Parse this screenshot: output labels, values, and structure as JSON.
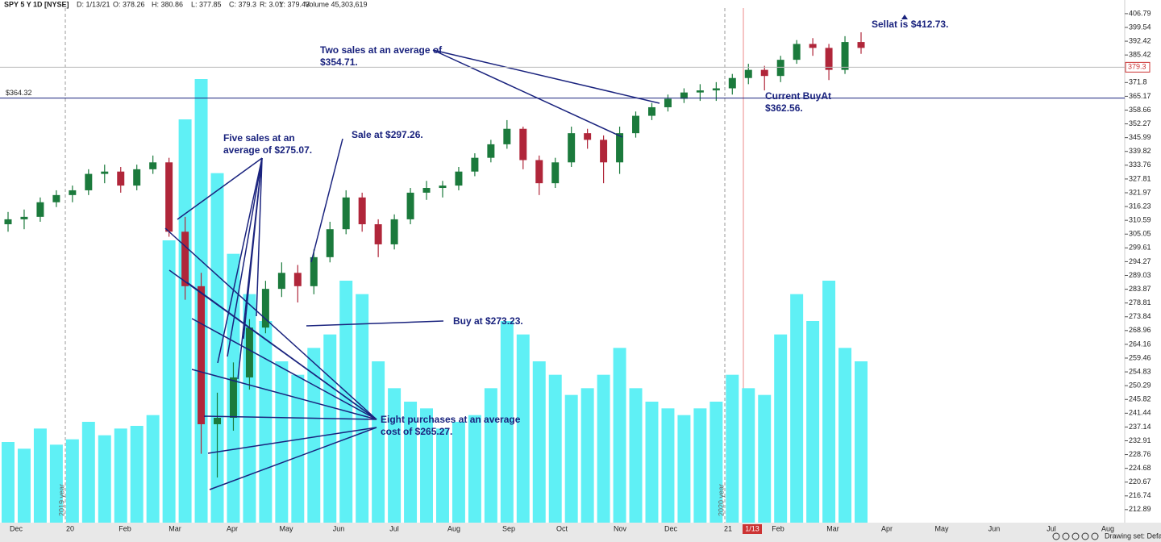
{
  "chart_data": {
    "type": "candlestick",
    "header": {
      "symbol": "SPY 5 Y 1D [NYSE]",
      "date": "D: 1/13/21",
      "open": "O: 378.26",
      "high": "H: 380.86",
      "low": "L: 377.85",
      "close": "C: 379.3",
      "range": "R: 3.01",
      "yesterday": "Y: 379.43",
      "volume": "Volume 45,303,619"
    },
    "log_scale": true,
    "ylim": [
      209.3,
      414.1
    ],
    "yticks": [
      406.79,
      399.54,
      392.42,
      385.42,
      371.8,
      365.17,
      358.66,
      352.27,
      345.99,
      339.82,
      333.76,
      327.81,
      321.97,
      316.23,
      310.59,
      305.05,
      299.61,
      294.27,
      289.03,
      283.87,
      278.81,
      273.84,
      268.96,
      264.16,
      259.46,
      254.83,
      250.29,
      245.82,
      241.44,
      237.14,
      232.91,
      228.76,
      224.68,
      220.67,
      216.74,
      212.89
    ],
    "last_price": 379.3,
    "price_line": {
      "value": 364.32,
      "label": "$364.32"
    },
    "categories": [
      "Dec",
      "20",
      "Feb",
      "Mar",
      "Apr",
      "May",
      "Jun",
      "Jul",
      "Aug",
      "Sep",
      "Oct",
      "Nov",
      "Dec",
      "21",
      "1/13",
      "Feb",
      "Mar",
      "Apr",
      "May",
      "Jun",
      "Jul",
      "Aug"
    ],
    "year_labels": [
      "2019 year",
      "2020 year"
    ],
    "up_color": "#1b7a3c",
    "down_color": "#b0263a",
    "volume_color": "#5ff0f5",
    "candles": [
      {
        "open": 309,
        "high": 314,
        "low": 306,
        "close": 311
      },
      {
        "open": 311,
        "high": 315,
        "low": 307,
        "close": 312
      },
      {
        "open": 312,
        "high": 320,
        "low": 310,
        "close": 318
      },
      {
        "open": 318,
        "high": 323,
        "low": 316,
        "close": 321
      },
      {
        "open": 321,
        "high": 325,
        "low": 318,
        "close": 323
      },
      {
        "open": 323,
        "high": 332,
        "low": 321,
        "close": 330
      },
      {
        "open": 330,
        "high": 334,
        "low": 326,
        "close": 331
      },
      {
        "open": 331,
        "high": 333,
        "low": 322,
        "close": 325
      },
      {
        "open": 325,
        "high": 334,
        "low": 323,
        "close": 332
      },
      {
        "open": 332,
        "high": 338,
        "low": 330,
        "close": 335
      },
      {
        "open": 335,
        "high": 337,
        "low": 304,
        "close": 306
      },
      {
        "open": 306,
        "high": 312,
        "low": 280,
        "close": 285
      },
      {
        "open": 285,
        "high": 290,
        "low": 229,
        "close": 238
      },
      {
        "open": 238,
        "high": 248,
        "low": 222,
        "close": 240
      },
      {
        "open": 240,
        "high": 258,
        "low": 236,
        "close": 253
      },
      {
        "open": 253,
        "high": 273,
        "low": 249,
        "close": 270
      },
      {
        "open": 270,
        "high": 287,
        "low": 268,
        "close": 284
      },
      {
        "open": 284,
        "high": 294,
        "low": 281,
        "close": 290
      },
      {
        "open": 290,
        "high": 293,
        "low": 279,
        "close": 285
      },
      {
        "open": 285,
        "high": 299,
        "low": 282,
        "close": 296
      },
      {
        "open": 296,
        "high": 310,
        "low": 294,
        "close": 307
      },
      {
        "open": 307,
        "high": 323,
        "low": 305,
        "close": 320
      },
      {
        "open": 320,
        "high": 322,
        "low": 306,
        "close": 309
      },
      {
        "open": 309,
        "high": 311,
        "low": 296,
        "close": 301
      },
      {
        "open": 301,
        "high": 313,
        "low": 299,
        "close": 311
      },
      {
        "open": 311,
        "high": 324,
        "low": 309,
        "close": 322
      },
      {
        "open": 322,
        "high": 327,
        "low": 319,
        "close": 324
      },
      {
        "open": 324,
        "high": 327,
        "low": 320,
        "close": 325
      },
      {
        "open": 325,
        "high": 333,
        "low": 323,
        "close": 331
      },
      {
        "open": 331,
        "high": 339,
        "low": 329,
        "close": 337
      },
      {
        "open": 337,
        "high": 345,
        "low": 335,
        "close": 343
      },
      {
        "open": 343,
        "high": 354,
        "low": 341,
        "close": 350
      },
      {
        "open": 350,
        "high": 351,
        "low": 332,
        "close": 336
      },
      {
        "open": 336,
        "high": 338,
        "low": 321,
        "close": 326
      },
      {
        "open": 326,
        "high": 337,
        "low": 324,
        "close": 335
      },
      {
        "open": 335,
        "high": 351,
        "low": 333,
        "close": 348
      },
      {
        "open": 348,
        "high": 350,
        "low": 341,
        "close": 345
      },
      {
        "open": 345,
        "high": 347,
        "low": 326,
        "close": 335
      },
      {
        "open": 335,
        "high": 351,
        "low": 330,
        "close": 348
      },
      {
        "open": 348,
        "high": 358,
        "low": 346,
        "close": 356
      },
      {
        "open": 356,
        "high": 362,
        "low": 354,
        "close": 360
      },
      {
        "open": 360,
        "high": 366,
        "low": 358,
        "close": 364
      },
      {
        "open": 364,
        "high": 369,
        "low": 362,
        "close": 367
      },
      {
        "open": 367,
        "high": 371,
        "low": 363,
        "close": 368
      },
      {
        "open": 368,
        "high": 372,
        "low": 363,
        "close": 369
      },
      {
        "open": 369,
        "high": 376,
        "low": 366,
        "close": 374
      },
      {
        "open": 374,
        "high": 381,
        "low": 371,
        "close": 378
      },
      {
        "open": 378,
        "high": 380,
        "low": 368,
        "close": 375
      },
      {
        "open": 375,
        "high": 385,
        "low": 372,
        "close": 383
      },
      {
        "open": 383,
        "high": 393,
        "low": 381,
        "close": 391
      },
      {
        "open": 391,
        "high": 394,
        "low": 385,
        "close": 389
      },
      {
        "open": 389,
        "high": 391,
        "low": 373,
        "close": 378
      },
      {
        "open": 378,
        "high": 395,
        "low": 376,
        "close": 392
      },
      {
        "open": 392,
        "high": 397,
        "low": 386,
        "close": 389
      }
    ],
    "volume": [
      60,
      55,
      70,
      58,
      62,
      75,
      65,
      70,
      72,
      80,
      210,
      300,
      330,
      260,
      200,
      170,
      150,
      120,
      110,
      130,
      140,
      180,
      170,
      120,
      100,
      90,
      85,
      70,
      75,
      80,
      100,
      150,
      140,
      120,
      110,
      95,
      100,
      110,
      130,
      100,
      90,
      85,
      80,
      85,
      90,
      110,
      100,
      95,
      140,
      170,
      150,
      180,
      130,
      120
    ],
    "annotations": {
      "five_sales": [
        "Five sales at an",
        "average of $275.07."
      ],
      "sale": "Sale at $297.26.",
      "buy": "Buy at $273.23.",
      "eight_purchases": [
        "Eight purchases at an average",
        "cost of $265.27."
      ],
      "two_sales": [
        "Two sales at an average of",
        "$354.71."
      ],
      "current_buy": [
        "Current BuyAt",
        "$362.56."
      ],
      "sell": "Sellat is $412.73."
    },
    "footer": "Drawing set: Default"
  }
}
